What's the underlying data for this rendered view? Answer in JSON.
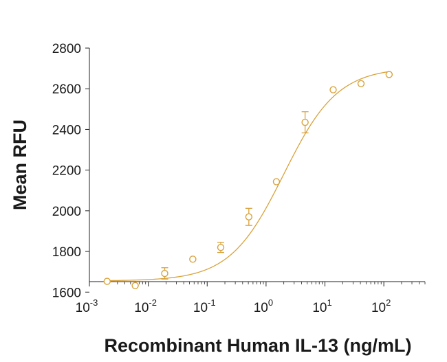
{
  "chart_data": {
    "type": "scatter",
    "xlabel": "Recombinant Human IL-13 (ng/mL)",
    "ylabel": "Mean RFU",
    "x_scale": "log",
    "xlim": [
      0.001,
      500
    ],
    "ylim": [
      1530,
      2800
    ],
    "y_ticks": [
      1600,
      1800,
      2000,
      2200,
      2400,
      2600,
      2800
    ],
    "x_ticks": [
      {
        "value": 0.001,
        "base": "10",
        "exp": "-3"
      },
      {
        "value": 0.01,
        "base": "10",
        "exp": "-2"
      },
      {
        "value": 0.1,
        "base": "10",
        "exp": "-1"
      },
      {
        "value": 1,
        "base": "10",
        "exp": "0"
      },
      {
        "value": 10,
        "base": "10",
        "exp": "1"
      },
      {
        "value": 100,
        "base": "10",
        "exp": "2"
      }
    ],
    "grid": false,
    "color": "#d9a23a",
    "points": [
      {
        "x": 0.002,
        "y": 1653
      },
      {
        "x": 0.006,
        "y": 1632
      },
      {
        "x": 0.019,
        "y": 1692,
        "err": 28
      },
      {
        "x": 0.057,
        "y": 1762
      },
      {
        "x": 0.17,
        "y": 1820,
        "err": 25
      },
      {
        "x": 0.51,
        "y": 1970,
        "err": 42
      },
      {
        "x": 1.5,
        "y": 2143
      },
      {
        "x": 4.6,
        "y": 2435,
        "err": 52
      },
      {
        "x": 13.8,
        "y": 2595
      },
      {
        "x": 41,
        "y": 2625
      },
      {
        "x": 123,
        "y": 2670
      }
    ],
    "fit": {
      "bottom": 1655,
      "top": 2705,
      "ec50": 2.0,
      "hill": 0.95
    }
  }
}
